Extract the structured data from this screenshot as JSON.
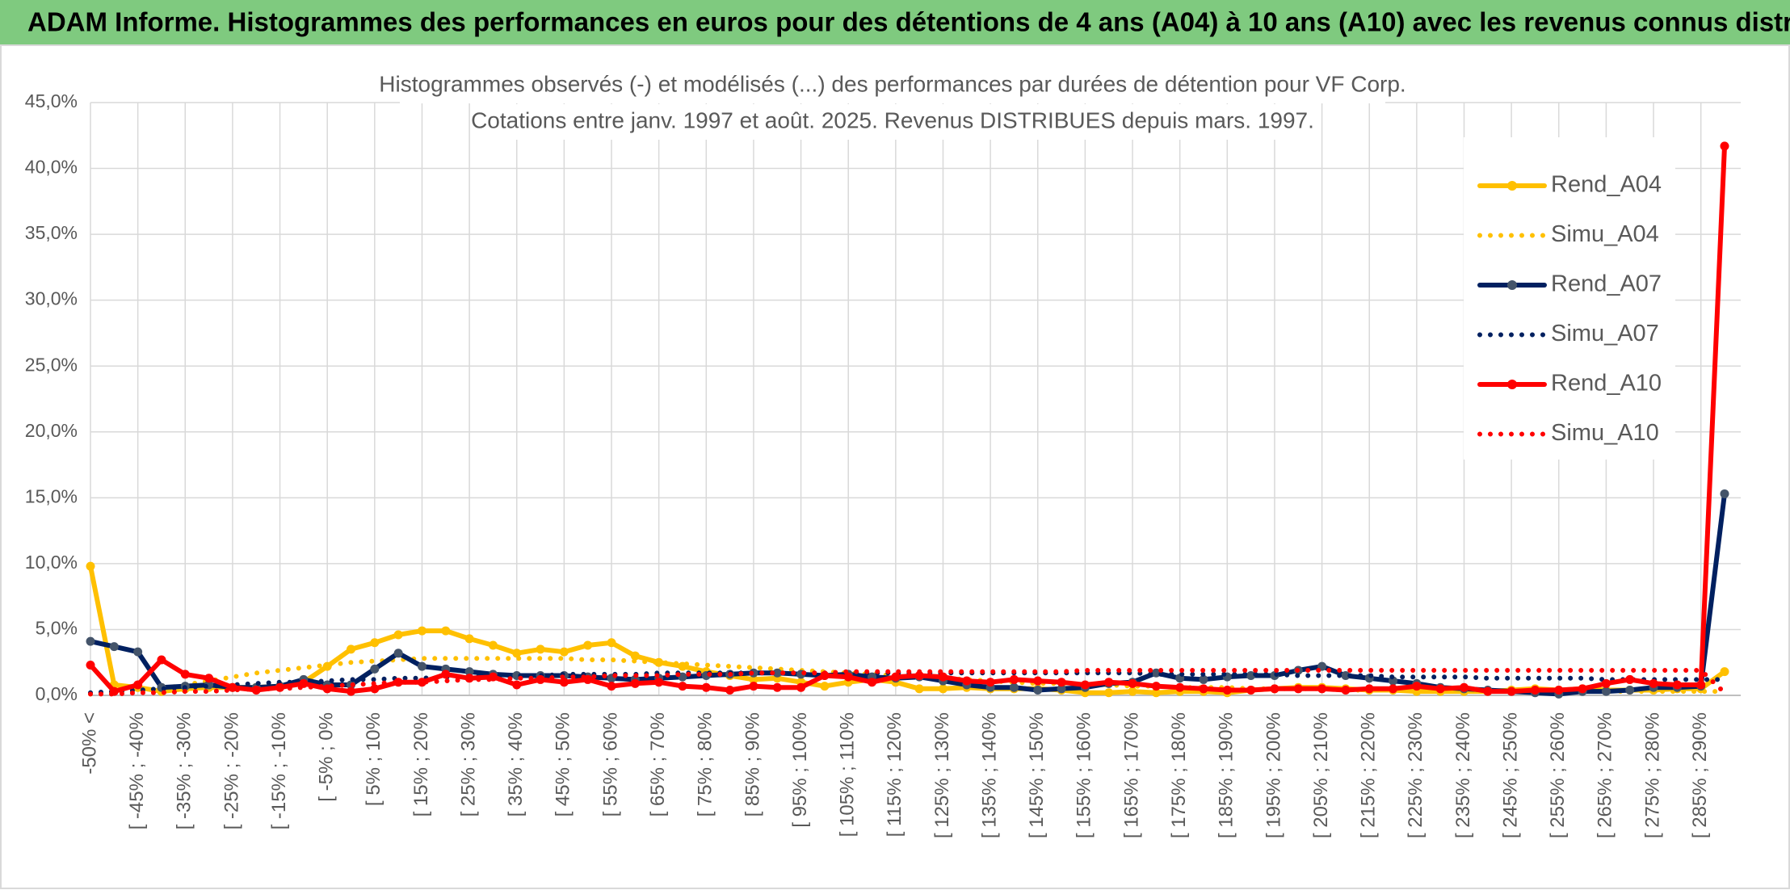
{
  "chart_data": {
    "type": "line",
    "title": "ADAM Informe. Histogrammes des performances en euros pour des détentions de 4 ans (A04) à 10 ans (A10) avec les revenus connus distribués",
    "subtitle": [
      "Histogrammes observés (-) et modélisés (...) des performances par durées de détention pour VF Corp.",
      "Cotations entre janv. 1997 et août. 2025. Revenus DISTRIBUES depuis mars. 1997."
    ],
    "categories": [
      "-50% <",
      null,
      "[ -45% ; -40%",
      null,
      "[ -35% ; -30%",
      null,
      "[ -25% ; -20%",
      null,
      "[ -15% ; -10%",
      null,
      "[ -5% ; 0%",
      null,
      "[ 5% ; 10%",
      null,
      "[ 15% ; 20%",
      null,
      "[ 25% ; 30%",
      null,
      "[ 35% ; 40%",
      null,
      "[ 45% ; 50%",
      null,
      "[ 55% ; 60%",
      null,
      "[ 65% ; 70%",
      null,
      "[ 75% ; 80%",
      null,
      "[ 85% ; 90%",
      null,
      "[ 95% ; 100%",
      null,
      "[ 105% ; 110%",
      null,
      "[ 115% ; 120%",
      null,
      "[ 125% ; 130%",
      null,
      "[ 135% ; 140%",
      null,
      "[ 145% ; 150%",
      null,
      "[ 155% ; 160%",
      null,
      "[ 165% ; 170%",
      null,
      "[ 175% ; 180%",
      null,
      "[ 185% ; 190%",
      null,
      "[ 195% ; 200%",
      null,
      "[ 205% ; 210%",
      null,
      "[ 215% ; 220%",
      null,
      "[ 225% ; 230%",
      null,
      "[ 235% ; 240%",
      null,
      "[ 245% ; 250%",
      null,
      "[ 255% ; 260%",
      null,
      "[ 265% ; 270%",
      null,
      "[ 275% ; 280%",
      null,
      "[ 285% ; 290%",
      null
    ],
    "ylim": [
      0,
      45
    ],
    "yticks": [
      {
        "value": 0,
        "label": "0,0%"
      },
      {
        "value": 5,
        "label": "5,0%"
      },
      {
        "value": 10,
        "label": "10,0%"
      },
      {
        "value": 15,
        "label": "15,0%"
      },
      {
        "value": 20,
        "label": "20,0%"
      },
      {
        "value": 25,
        "label": "25,0%"
      },
      {
        "value": 30,
        "label": "30,0%"
      },
      {
        "value": 35,
        "label": "35,0%"
      },
      {
        "value": 40,
        "label": "40,0%"
      },
      {
        "value": 45,
        "label": "45,0%"
      }
    ],
    "grid": true,
    "legend": "upper right",
    "series": [
      {
        "name": "Rend_A04",
        "color": "#ffc000",
        "style": "solid",
        "values": [
          9.8,
          0.8,
          0.6,
          0.3,
          0.5,
          0.6,
          0.6,
          0.6,
          0.7,
          1.0,
          2.2,
          3.5,
          4.0,
          4.6,
          4.9,
          4.9,
          4.3,
          3.8,
          3.2,
          3.5,
          3.3,
          3.8,
          4.0,
          3.0,
          2.5,
          2.2,
          1.8,
          1.5,
          1.2,
          1.3,
          1.0,
          0.7,
          1.0,
          1.2,
          1.0,
          0.5,
          0.5,
          0.6,
          0.5,
          0.5,
          0.5,
          0.4,
          0.2,
          0.2,
          0.3,
          0.2,
          0.3,
          0.3,
          0.2,
          0.4,
          0.5,
          0.6,
          0.6,
          0.5,
          0.4,
          0.4,
          0.3,
          0.3,
          0.3,
          0.3,
          0.4,
          0.5,
          0.4,
          0.5,
          0.4,
          0.4,
          0.4,
          0.5,
          0.5,
          1.8
        ]
      },
      {
        "name": "Simu_A04",
        "color": "#ffc000",
        "style": "dotted",
        "values": [
          0.1,
          0.2,
          0.3,
          0.5,
          0.8,
          1.1,
          1.4,
          1.7,
          1.9,
          2.1,
          2.3,
          2.5,
          2.6,
          2.7,
          2.8,
          2.8,
          2.8,
          2.8,
          2.8,
          2.8,
          2.8,
          2.7,
          2.7,
          2.6,
          2.5,
          2.4,
          2.3,
          2.2,
          2.1,
          2.0,
          1.9,
          1.8,
          1.7,
          1.6,
          1.5,
          1.4,
          1.3,
          1.2,
          1.1,
          1.0,
          0.9,
          0.9,
          0.8,
          0.8,
          0.7,
          0.7,
          0.6,
          0.6,
          0.6,
          0.5,
          0.5,
          0.5,
          0.5,
          0.4,
          0.4,
          0.4,
          0.4,
          0.4,
          0.3,
          0.3,
          0.3,
          0.3,
          0.3,
          0.3,
          0.3,
          0.3,
          0.3,
          0.3,
          0.3,
          0.3
        ]
      },
      {
        "name": "Rend_A07",
        "color": "#002060",
        "marker_color": "#44546a",
        "style": "solid",
        "values": [
          4.1,
          3.7,
          3.3,
          0.6,
          0.7,
          0.8,
          0.6,
          0.6,
          0.7,
          1.2,
          0.8,
          0.8,
          2.0,
          3.2,
          2.2,
          2.0,
          1.8,
          1.6,
          1.5,
          1.5,
          1.5,
          1.4,
          1.3,
          1.2,
          1.3,
          1.4,
          1.5,
          1.6,
          1.7,
          1.7,
          1.6,
          1.5,
          1.6,
          1.4,
          1.3,
          1.4,
          1.1,
          0.8,
          0.6,
          0.6,
          0.4,
          0.5,
          0.6,
          0.9,
          1.0,
          1.7,
          1.3,
          1.2,
          1.4,
          1.5,
          1.5,
          1.9,
          2.2,
          1.5,
          1.3,
          1.1,
          0.9,
          0.6,
          0.5,
          0.4,
          0.3,
          0.2,
          0.1,
          0.3,
          0.3,
          0.4,
          0.6,
          0.6,
          0.7,
          15.3
        ]
      },
      {
        "name": "Simu_A07",
        "color": "#002060",
        "style": "dotted",
        "values": [
          0.2,
          0.3,
          0.4,
          0.5,
          0.6,
          0.7,
          0.8,
          0.9,
          1.0,
          1.0,
          1.1,
          1.2,
          1.2,
          1.3,
          1.3,
          1.4,
          1.4,
          1.5,
          1.5,
          1.5,
          1.6,
          1.6,
          1.6,
          1.6,
          1.7,
          1.7,
          1.7,
          1.7,
          1.7,
          1.7,
          1.7,
          1.7,
          1.7,
          1.7,
          1.7,
          1.7,
          1.7,
          1.7,
          1.7,
          1.7,
          1.7,
          1.7,
          1.7,
          1.7,
          1.7,
          1.6,
          1.6,
          1.6,
          1.6,
          1.6,
          1.6,
          1.5,
          1.5,
          1.5,
          1.5,
          1.4,
          1.4,
          1.4,
          1.4,
          1.3,
          1.3,
          1.3,
          1.3,
          1.3,
          1.2,
          1.2,
          1.2,
          1.2,
          1.2,
          1.2
        ]
      },
      {
        "name": "Rend_A10",
        "color": "#ff0000",
        "style": "solid",
        "values": [
          2.3,
          0.3,
          0.8,
          2.7,
          1.6,
          1.3,
          0.6,
          0.4,
          0.6,
          0.9,
          0.5,
          0.3,
          0.5,
          1.0,
          1.0,
          1.6,
          1.3,
          1.4,
          0.8,
          1.2,
          1.0,
          1.2,
          0.7,
          0.9,
          1.0,
          0.7,
          0.6,
          0.4,
          0.7,
          0.6,
          0.6,
          1.5,
          1.4,
          1.0,
          1.4,
          1.5,
          1.4,
          1.1,
          1.0,
          1.2,
          1.1,
          1.0,
          0.8,
          1.0,
          0.9,
          0.7,
          0.6,
          0.5,
          0.4,
          0.4,
          0.5,
          0.5,
          0.5,
          0.4,
          0.5,
          0.5,
          0.7,
          0.5,
          0.6,
          0.3,
          0.3,
          0.4,
          0.4,
          0.5,
          0.9,
          1.2,
          0.9,
          0.8,
          0.8,
          41.7
        ]
      },
      {
        "name": "Simu_A10",
        "color": "#ff0000",
        "style": "dotted",
        "values": [
          0.1,
          0.1,
          0.2,
          0.2,
          0.3,
          0.3,
          0.4,
          0.5,
          0.5,
          0.6,
          0.7,
          0.8,
          0.9,
          1.0,
          1.0,
          1.1,
          1.2,
          1.2,
          1.3,
          1.3,
          1.4,
          1.4,
          1.5,
          1.5,
          1.5,
          1.6,
          1.6,
          1.6,
          1.7,
          1.7,
          1.7,
          1.7,
          1.8,
          1.8,
          1.8,
          1.8,
          1.8,
          1.8,
          1.8,
          1.8,
          1.8,
          1.8,
          1.9,
          1.9,
          1.9,
          1.9,
          1.9,
          1.9,
          1.9,
          1.9,
          1.9,
          1.9,
          1.9,
          1.9,
          1.9,
          1.9,
          1.9,
          1.9,
          1.9,
          1.9,
          1.9,
          1.9,
          1.9,
          1.9,
          1.9,
          1.9,
          1.9,
          1.9,
          1.9,
          0.2
        ]
      }
    ]
  }
}
